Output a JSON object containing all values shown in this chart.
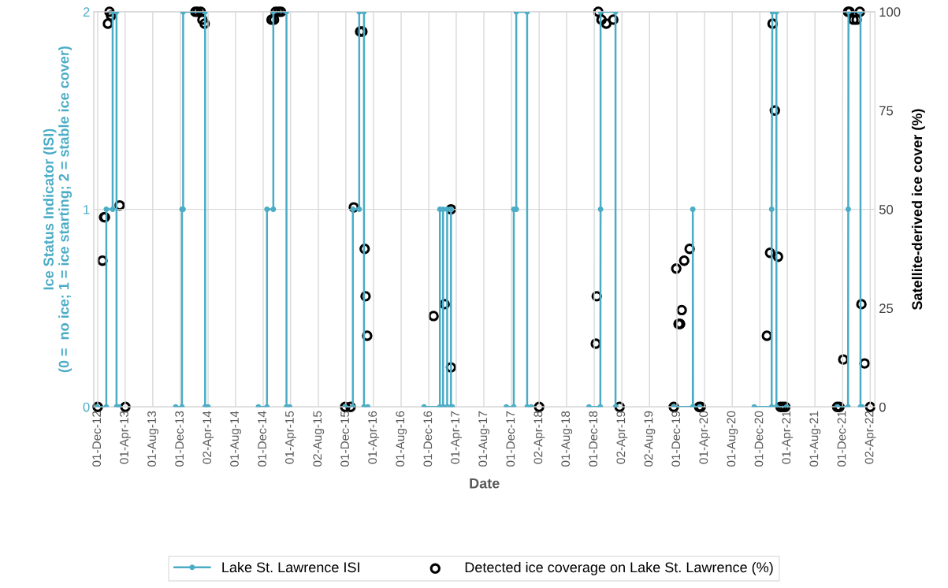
{
  "chart_data": {
    "type": "line",
    "xlabel": "Date",
    "ylabel": "Ice Status Indicator (ISI)\n(0 =  no ice; 1 = ice starting; 2 = stable ice cover)",
    "y2label": "Satellite-derived ice cover (%)",
    "xlim": [
      "2012-11-14",
      "2022-04-23"
    ],
    "xticks": [
      {
        "value": "2012-12-01",
        "label": "01-Dec-12"
      },
      {
        "value": "2013-04-01",
        "label": "01-Apr-13"
      },
      {
        "value": "2013-08-01",
        "label": "01-Aug-13"
      },
      {
        "value": "2013-12-01",
        "label": "01-Dec-13"
      },
      {
        "value": "2014-04-02",
        "label": "02-Apr-14"
      },
      {
        "value": "2014-08-01",
        "label": "01-Aug-14"
      },
      {
        "value": "2014-12-01",
        "label": "01-Dec-14"
      },
      {
        "value": "2015-04-01",
        "label": "01-Apr-15"
      },
      {
        "value": "2015-08-02",
        "label": "02-Aug-15"
      },
      {
        "value": "2015-12-01",
        "label": "01-Dec-15"
      },
      {
        "value": "2016-04-01",
        "label": "01-Apr-16"
      },
      {
        "value": "2016-08-01",
        "label": "01-Aug-16"
      },
      {
        "value": "2016-12-01",
        "label": "01-Dec-16"
      },
      {
        "value": "2017-04-01",
        "label": "01-Apr-17"
      },
      {
        "value": "2017-08-01",
        "label": "01-Aug-17"
      },
      {
        "value": "2017-12-01",
        "label": "01-Dec-17"
      },
      {
        "value": "2018-04-02",
        "label": "02-Apr-18"
      },
      {
        "value": "2018-08-01",
        "label": "01-Aug-18"
      },
      {
        "value": "2018-12-01",
        "label": "01-Dec-18"
      },
      {
        "value": "2019-04-02",
        "label": "02-Apr-19"
      },
      {
        "value": "2019-08-02",
        "label": "02-Aug-19"
      },
      {
        "value": "2019-12-01",
        "label": "01-Dec-19"
      },
      {
        "value": "2020-04-01",
        "label": "01-Apr-20"
      },
      {
        "value": "2020-08-01",
        "label": "01-Aug-20"
      },
      {
        "value": "2020-12-01",
        "label": "01-Dec-20"
      },
      {
        "value": "2021-04-01",
        "label": "01-Apr-21"
      },
      {
        "value": "2021-08-01",
        "label": "01-Aug-21"
      },
      {
        "value": "2021-12-01",
        "label": "01-Dec-21"
      },
      {
        "value": "2022-04-02",
        "label": "02-Apr-22"
      }
    ],
    "ylim": [
      0,
      2
    ],
    "yticks": [
      0,
      1,
      2
    ],
    "y2lim": [
      0,
      100
    ],
    "y2ticks": [
      0,
      25,
      50,
      75,
      100
    ],
    "grid": true,
    "legend": "bottom",
    "series": [
      {
        "name": "Lake St. Lawrence ISI",
        "color": "#4bacc6",
        "marker": "circle",
        "line_style": "solid",
        "x": [
          "2012-11-28",
          "2013-01-08",
          "2013-01-08",
          "2013-02-05",
          "2013-02-05",
          "2013-02-22",
          "2013-02-22",
          "2013-03-05",
          null,
          "2013-11-10",
          "2013-12-08",
          "2013-12-08",
          "2013-12-13",
          "2013-12-13",
          "2014-03-20",
          "2014-03-20",
          "2014-04-02",
          null,
          "2014-11-10",
          "2014-12-18",
          "2014-12-18",
          "2015-01-15",
          "2015-01-15",
          "2015-03-14",
          "2015-03-14",
          "2015-03-28",
          null,
          "2015-11-28",
          "2016-01-01",
          "2016-01-01",
          "2016-01-29",
          "2016-01-29",
          "2016-02-19",
          "2016-02-19",
          "2016-03-07",
          null,
          "2016-11-10",
          "2017-01-19",
          "2017-01-19",
          "2017-02-02",
          "2017-02-02",
          "2017-02-20",
          "2017-02-20",
          "2017-03-09",
          "2017-03-09",
          "2017-03-15",
          null,
          "2017-11-08",
          "2017-12-11",
          "2017-12-11",
          "2017-12-22",
          "2017-12-22",
          "2018-02-08",
          "2018-02-08",
          "2018-02-26",
          null,
          "2018-11-08",
          "2018-12-28",
          "2018-12-29",
          "2018-12-29",
          "2019-03-05",
          "2019-03-05",
          "2019-03-08",
          null,
          "2019-11-17",
          "2020-02-09",
          "2020-02-09",
          "2020-02-10",
          "2020-03-10",
          null,
          "2020-11-06",
          "2021-01-22",
          "2021-01-22",
          "2021-01-25",
          "2021-02-12",
          "2021-02-12",
          "2021-03-29",
          null,
          "2021-11-07",
          "2021-12-25",
          "2021-12-26",
          "2021-12-27",
          "2022-02-18",
          "2022-02-18",
          "2022-02-25"
        ],
        "values": [
          0,
          0,
          1,
          1,
          2,
          2,
          0,
          0,
          null,
          0,
          0,
          1,
          1,
          2,
          2,
          0,
          0,
          null,
          0,
          0,
          1,
          1,
          2,
          2,
          0,
          0,
          null,
          0,
          0,
          1,
          1,
          2,
          2,
          0,
          0,
          null,
          0,
          0,
          1,
          1,
          0,
          0,
          1,
          1,
          0,
          0,
          null,
          0,
          0,
          1,
          1,
          2,
          2,
          0,
          0,
          null,
          0,
          0,
          1,
          2,
          2,
          0,
          0,
          null,
          0,
          0,
          1,
          0,
          0,
          null,
          0,
          0,
          1,
          2,
          2,
          0,
          0,
          null,
          0,
          0,
          1,
          2,
          2,
          0,
          0
        ]
      },
      {
        "name": "Detected ice coverage on Lake St. Lawrence (%)",
        "type": "scatter",
        "axis": "y2",
        "color": "#000000",
        "marker": "circle",
        "x": [
          "2012-12-01",
          "2012-12-22",
          "2012-12-29",
          "2013-01-02",
          "2013-01-15",
          "2013-01-22",
          "2013-01-29",
          "2013-03-08",
          "2013-04-02",
          "2014-02-05",
          "2014-02-15",
          "2014-03-01",
          "2014-03-08",
          "2014-03-18",
          "2015-01-07",
          "2015-01-18",
          "2015-01-25",
          "2015-02-07",
          "2015-02-18",
          "2015-11-28",
          "2015-12-22",
          "2016-01-05",
          "2016-02-02",
          "2016-02-12",
          "2016-02-22",
          "2016-02-26",
          "2016-03-04",
          "2016-12-22",
          "2017-02-09",
          "2017-03-09",
          "2017-03-09",
          "2018-04-02",
          "2018-12-08",
          "2018-12-12",
          "2018-12-19",
          "2019-01-02",
          "2019-01-23",
          "2019-02-23",
          "2019-03-23",
          "2019-11-17",
          "2019-11-28",
          "2019-12-08",
          "2019-12-15",
          "2019-12-22",
          "2020-01-02",
          "2020-01-26",
          "2020-03-08",
          "2020-03-15",
          "2021-01-01",
          "2021-01-15",
          "2021-01-26",
          "2021-02-05",
          "2021-02-19",
          "2021-03-02",
          "2021-03-12",
          "2021-03-23",
          "2021-11-07",
          "2021-11-17",
          "2021-12-04",
          "2021-12-25",
          "2022-01-01",
          "2022-01-18",
          "2022-02-01",
          "2022-02-15",
          "2022-02-22",
          "2022-03-08",
          "2022-04-02"
        ],
        "values": [
          0,
          37,
          48,
          48,
          97,
          100,
          99,
          51,
          0,
          100,
          100,
          100,
          98,
          97,
          98,
          98,
          100,
          100,
          100,
          0,
          0,
          50.5,
          95,
          95,
          40,
          28,
          18,
          23,
          26,
          50,
          10,
          0,
          16,
          28,
          100,
          98,
          97,
          98,
          0,
          0,
          35,
          21,
          21,
          24.5,
          37,
          40,
          0,
          0,
          18,
          39,
          97,
          75,
          38,
          0,
          0,
          0,
          0,
          0,
          12,
          100,
          100,
          98,
          98,
          100,
          26,
          11,
          0
        ]
      }
    ]
  }
}
